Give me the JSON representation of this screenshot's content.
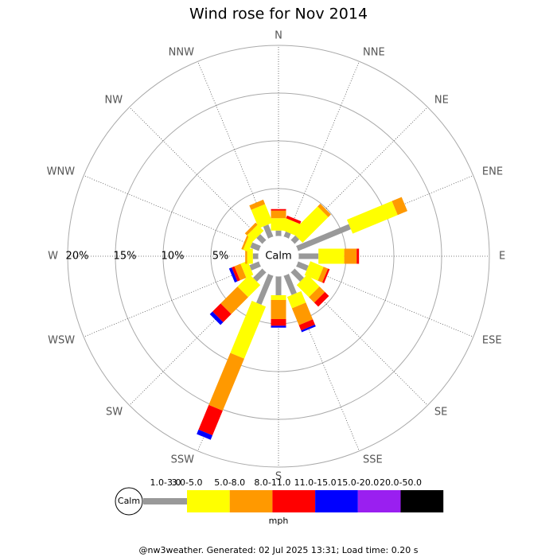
{
  "chart_data": {
    "type": "windrose",
    "title": "Wind rose for Nov 2014",
    "directions": [
      "N",
      "NNE",
      "NE",
      "ENE",
      "E",
      "ESE",
      "SE",
      "SSE",
      "S",
      "SSW",
      "SW",
      "WSW",
      "W",
      "WNW",
      "NW",
      "NNW"
    ],
    "series": [
      {
        "name": "1.0-3.0",
        "color": "#999999",
        "values": [
          0.6,
          0.6,
          0.7,
          6.0,
          2.1,
          1.2,
          1.4,
          2.2,
          2.0,
          3.3,
          1.4,
          1.1,
          0.6,
          1.0,
          0.9,
          1.4
        ]
      },
      {
        "name": "3.0-5.0",
        "color": "#ffff00",
        "values": [
          1.3,
          1.3,
          3.8,
          5.1,
          2.7,
          1.5,
          1.8,
          1.3,
          0.5,
          5.9,
          1.8,
          0.8,
          0.6,
          0.6,
          0.9,
          2.1
        ]
      },
      {
        "name": "5.0-8.0",
        "color": "#ff9900",
        "values": [
          0.8,
          0,
          0.4,
          1.1,
          1.3,
          0.5,
          0.8,
          1.9,
          2.0,
          5.9,
          2.5,
          0.7,
          0.2,
          0.2,
          0.3,
          0.5
        ]
      },
      {
        "name": "8.0-11.0",
        "color": "#ff0000",
        "values": [
          0.15,
          0.3,
          0,
          0,
          0.25,
          0.2,
          0.6,
          0.6,
          0.7,
          2.8,
          1.2,
          0.3,
          0,
          0,
          0,
          0
        ]
      },
      {
        "name": "11.0-15.0",
        "color": "#0000ff",
        "values": [
          0,
          0,
          0,
          0,
          0,
          0,
          0,
          0.2,
          0.2,
          0.5,
          0.4,
          0.3,
          0,
          0,
          0,
          0
        ]
      },
      {
        "name": "15.0-20.0",
        "color": "#9a1ff0",
        "values": [
          0,
          0,
          0,
          0,
          0,
          0,
          0,
          0,
          0,
          0,
          0,
          0,
          0,
          0,
          0,
          0
        ]
      },
      {
        "name": "20.0-50.0",
        "color": "#000000",
        "values": [
          0,
          0,
          0,
          0,
          0,
          0,
          0,
          0,
          0,
          0,
          0,
          0,
          0,
          0,
          0,
          0
        ]
      }
    ],
    "rlim": [
      0,
      20
    ],
    "rticks": [
      {
        "value": 5,
        "label": "5%"
      },
      {
        "value": 10,
        "label": "10%"
      },
      {
        "value": 15,
        "label": "15%"
      },
      {
        "value": 20,
        "label": "20%"
      }
    ],
    "calm_label": "Calm",
    "unit": "mph",
    "footer": "@nw3weather. Generated: 02 Jul 2025 13:31; Load time: 0.20 s"
  }
}
